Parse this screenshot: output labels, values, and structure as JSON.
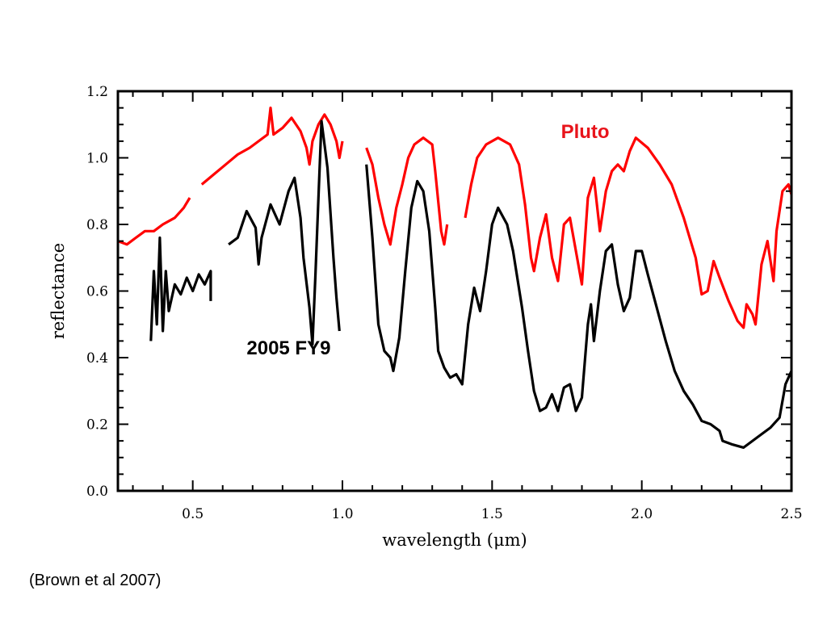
{
  "chart_data": {
    "type": "line",
    "xlabel": "wavelength (μm)",
    "ylabel": "reflectance",
    "xlim": [
      0.25,
      2.5
    ],
    "ylim": [
      0.0,
      1.2
    ],
    "x_ticks": [
      "0.5",
      "1.0",
      "1.5",
      "2.0",
      "2.5"
    ],
    "y_ticks": [
      "0.0",
      "0.2",
      "0.4",
      "0.6",
      "0.8",
      "1.0",
      "1.2"
    ],
    "grid": false,
    "series": [
      {
        "name": "Pluto",
        "color": "#ff0000",
        "segments": [
          [
            [
              0.25,
              0.75
            ],
            [
              0.28,
              0.74
            ],
            [
              0.31,
              0.76
            ],
            [
              0.34,
              0.78
            ],
            [
              0.37,
              0.78
            ],
            [
              0.4,
              0.8
            ],
            [
              0.44,
              0.82
            ],
            [
              0.47,
              0.85
            ],
            [
              0.49,
              0.88
            ]
          ],
          [
            [
              0.53,
              0.92
            ],
            [
              0.57,
              0.95
            ],
            [
              0.61,
              0.98
            ],
            [
              0.65,
              1.01
            ],
            [
              0.69,
              1.03
            ],
            [
              0.72,
              1.05
            ],
            [
              0.75,
              1.07
            ],
            [
              0.76,
              1.15
            ],
            [
              0.77,
              1.07
            ],
            [
              0.8,
              1.09
            ],
            [
              0.83,
              1.12
            ],
            [
              0.86,
              1.08
            ],
            [
              0.88,
              1.03
            ],
            [
              0.89,
              0.98
            ],
            [
              0.9,
              1.05
            ],
            [
              0.92,
              1.1
            ],
            [
              0.94,
              1.13
            ],
            [
              0.96,
              1.1
            ],
            [
              0.98,
              1.05
            ],
            [
              0.99,
              1.0
            ],
            [
              1.0,
              1.05
            ]
          ],
          [
            [
              1.08,
              1.03
            ],
            [
              1.1,
              0.98
            ],
            [
              1.12,
              0.88
            ],
            [
              1.14,
              0.8
            ],
            [
              1.16,
              0.74
            ],
            [
              1.18,
              0.85
            ],
            [
              1.2,
              0.92
            ],
            [
              1.22,
              1.0
            ],
            [
              1.24,
              1.04
            ],
            [
              1.27,
              1.06
            ],
            [
              1.3,
              1.04
            ],
            [
              1.31,
              0.96
            ],
            [
              1.32,
              0.87
            ],
            [
              1.33,
              0.78
            ],
            [
              1.34,
              0.74
            ],
            [
              1.35,
              0.8
            ]
          ],
          [
            [
              1.41,
              0.82
            ],
            [
              1.43,
              0.92
            ],
            [
              1.45,
              1.0
            ],
            [
              1.48,
              1.04
            ],
            [
              1.52,
              1.06
            ],
            [
              1.56,
              1.04
            ],
            [
              1.59,
              0.98
            ],
            [
              1.61,
              0.86
            ],
            [
              1.63,
              0.7
            ],
            [
              1.64,
              0.66
            ],
            [
              1.66,
              0.76
            ],
            [
              1.68,
              0.83
            ],
            [
              1.7,
              0.7
            ],
            [
              1.72,
              0.63
            ],
            [
              1.74,
              0.8
            ],
            [
              1.76,
              0.82
            ],
            [
              1.78,
              0.72
            ],
            [
              1.8,
              0.62
            ],
            [
              1.82,
              0.88
            ],
            [
              1.84,
              0.94
            ],
            [
              1.86,
              0.78
            ],
            [
              1.88,
              0.9
            ],
            [
              1.9,
              0.96
            ],
            [
              1.92,
              0.98
            ],
            [
              1.94,
              0.96
            ],
            [
              1.96,
              1.02
            ],
            [
              1.98,
              1.06
            ],
            [
              2.02,
              1.03
            ],
            [
              2.06,
              0.98
            ],
            [
              2.1,
              0.92
            ],
            [
              2.14,
              0.82
            ],
            [
              2.18,
              0.7
            ],
            [
              2.2,
              0.59
            ],
            [
              2.22,
              0.6
            ],
            [
              2.24,
              0.69
            ],
            [
              2.26,
              0.64
            ],
            [
              2.29,
              0.57
            ],
            [
              2.32,
              0.51
            ],
            [
              2.34,
              0.49
            ],
            [
              2.35,
              0.56
            ],
            [
              2.37,
              0.53
            ],
            [
              2.38,
              0.5
            ],
            [
              2.4,
              0.68
            ],
            [
              2.42,
              0.75
            ],
            [
              2.44,
              0.63
            ],
            [
              2.45,
              0.78
            ],
            [
              2.47,
              0.9
            ],
            [
              2.49,
              0.92
            ],
            [
              2.5,
              0.89
            ]
          ]
        ]
      },
      {
        "name": "2005 FY9",
        "color": "#000000",
        "segments": [
          [
            [
              0.36,
              0.45
            ],
            [
              0.37,
              0.66
            ],
            [
              0.38,
              0.5
            ],
            [
              0.39,
              0.76
            ],
            [
              0.4,
              0.48
            ],
            [
              0.41,
              0.66
            ],
            [
              0.42,
              0.54
            ],
            [
              0.44,
              0.62
            ],
            [
              0.46,
              0.59
            ],
            [
              0.48,
              0.64
            ],
            [
              0.5,
              0.6
            ],
            [
              0.52,
              0.65
            ],
            [
              0.54,
              0.62
            ],
            [
              0.56,
              0.66
            ],
            [
              0.56,
              0.57
            ]
          ],
          [
            [
              0.62,
              0.74
            ],
            [
              0.65,
              0.76
            ],
            [
              0.68,
              0.84
            ],
            [
              0.71,
              0.79
            ],
            [
              0.72,
              0.68
            ],
            [
              0.73,
              0.76
            ],
            [
              0.76,
              0.86
            ],
            [
              0.79,
              0.8
            ],
            [
              0.82,
              0.9
            ],
            [
              0.84,
              0.94
            ],
            [
              0.86,
              0.82
            ],
            [
              0.87,
              0.7
            ],
            [
              0.89,
              0.55
            ],
            [
              0.9,
              0.44
            ],
            [
              0.91,
              0.65
            ],
            [
              0.92,
              0.88
            ],
            [
              0.93,
              1.11
            ],
            [
              0.95,
              0.97
            ],
            [
              0.97,
              0.7
            ],
            [
              0.98,
              0.58
            ],
            [
              0.99,
              0.48
            ]
          ],
          [
            [
              1.08,
              0.98
            ],
            [
              1.1,
              0.76
            ],
            [
              1.12,
              0.5
            ],
            [
              1.14,
              0.42
            ],
            [
              1.16,
              0.4
            ],
            [
              1.17,
              0.36
            ],
            [
              1.19,
              0.46
            ],
            [
              1.21,
              0.66
            ],
            [
              1.23,
              0.85
            ],
            [
              1.25,
              0.93
            ],
            [
              1.27,
              0.9
            ],
            [
              1.29,
              0.78
            ],
            [
              1.31,
              0.55
            ],
            [
              1.32,
              0.42
            ],
            [
              1.34,
              0.37
            ],
            [
              1.36,
              0.34
            ],
            [
              1.38,
              0.35
            ],
            [
              1.4,
              0.32
            ],
            [
              1.42,
              0.5
            ],
            [
              1.44,
              0.61
            ],
            [
              1.46,
              0.54
            ],
            [
              1.48,
              0.66
            ],
            [
              1.5,
              0.8
            ],
            [
              1.52,
              0.85
            ],
            [
              1.55,
              0.8
            ],
            [
              1.57,
              0.72
            ],
            [
              1.6,
              0.55
            ],
            [
              1.62,
              0.42
            ],
            [
              1.64,
              0.3
            ],
            [
              1.66,
              0.24
            ],
            [
              1.68,
              0.25
            ],
            [
              1.7,
              0.29
            ],
            [
              1.72,
              0.24
            ],
            [
              1.74,
              0.31
            ],
            [
              1.76,
              0.32
            ],
            [
              1.78,
              0.24
            ],
            [
              1.8,
              0.28
            ],
            [
              1.82,
              0.5
            ],
            [
              1.83,
              0.56
            ],
            [
              1.84,
              0.45
            ],
            [
              1.86,
              0.6
            ],
            [
              1.88,
              0.72
            ],
            [
              1.9,
              0.74
            ],
            [
              1.92,
              0.62
            ],
            [
              1.94,
              0.54
            ],
            [
              1.96,
              0.58
            ],
            [
              1.98,
              0.72
            ],
            [
              2.0,
              0.72
            ],
            [
              2.02,
              0.65
            ],
            [
              2.05,
              0.55
            ],
            [
              2.08,
              0.45
            ],
            [
              2.11,
              0.36
            ],
            [
              2.14,
              0.3
            ],
            [
              2.17,
              0.26
            ],
            [
              2.2,
              0.21
            ],
            [
              2.23,
              0.2
            ],
            [
              2.26,
              0.18
            ],
            [
              2.27,
              0.15
            ],
            [
              2.3,
              0.14
            ],
            [
              2.34,
              0.13
            ],
            [
              2.37,
              0.15
            ],
            [
              2.4,
              0.17
            ],
            [
              2.43,
              0.19
            ],
            [
              2.46,
              0.22
            ],
            [
              2.48,
              0.32
            ],
            [
              2.5,
              0.36
            ]
          ]
        ]
      }
    ],
    "annotations": [
      {
        "text": "Pluto",
        "x": 1.73,
        "y": 1.06,
        "color": "#e8141b"
      },
      {
        "text": "2005 FY9",
        "x": 0.68,
        "y": 0.41,
        "color": "#000000"
      }
    ]
  },
  "citation": "(Brown et al 2007)"
}
